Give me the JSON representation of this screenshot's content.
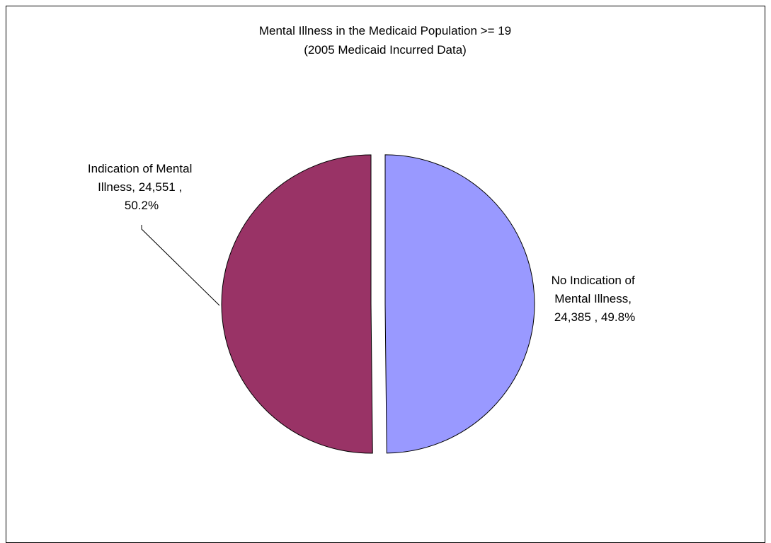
{
  "chart_data": {
    "type": "pie",
    "title": "Mental Illness in the Medicaid Population >= 19",
    "subtitle": "(2005 Medicaid Incurred Data)",
    "slices": [
      {
        "label": "No Indication of Mental Illness",
        "value": 24385,
        "percent": 49.8,
        "color": "#9999ff",
        "exploded": true,
        "data_label_lines": [
          "No Indication of",
          "Mental Illness,",
          "24,385 , 49.8%"
        ]
      },
      {
        "label": "Indication of Mental Illness",
        "value": 24551,
        "percent": 50.2,
        "color": "#993366",
        "exploded": false,
        "data_label_lines": [
          "Indication of Mental",
          "Illness,  24,551 ,",
          "50.2%"
        ]
      }
    ],
    "legend": "none"
  }
}
